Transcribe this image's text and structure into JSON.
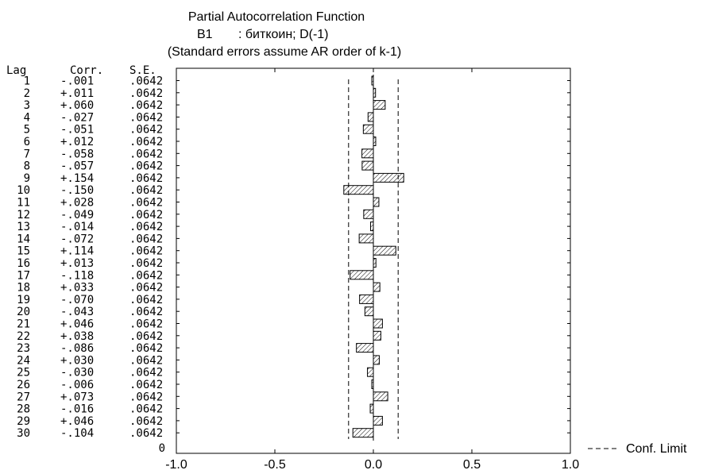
{
  "chart_data": {
    "type": "bar",
    "orientation": "horizontal",
    "title": "Partial Autocorrelation Function",
    "subtitle_series": "B1",
    "subtitle_desc": ": биткоин; D(-1)",
    "subtitle2": "(Standard errors assume AR order of k-1)",
    "table_headers": {
      "lag": "Lag",
      "corr": "Corr.",
      "se": "S.E."
    },
    "lags": [
      1,
      2,
      3,
      4,
      5,
      6,
      7,
      8,
      9,
      10,
      11,
      12,
      13,
      14,
      15,
      16,
      17,
      18,
      19,
      20,
      21,
      22,
      23,
      24,
      25,
      26,
      27,
      28,
      29,
      30
    ],
    "corr_labels": [
      "-.001",
      "+.011",
      "+.060",
      "-.027",
      "-.051",
      "+.012",
      "-.058",
      "-.057",
      "+.154",
      "-.150",
      "+.028",
      "-.049",
      "-.014",
      "-.072",
      "+.114",
      "+.013",
      "-.118",
      "+.033",
      "-.070",
      "-.043",
      "+.046",
      "+.038",
      "-.086",
      "+.030",
      "-.030",
      "-.006",
      "+.073",
      "-.016",
      "+.046",
      "-.104"
    ],
    "values": [
      -0.001,
      0.011,
      0.06,
      -0.027,
      -0.051,
      0.012,
      -0.058,
      -0.057,
      0.154,
      -0.15,
      0.028,
      -0.049,
      -0.014,
      -0.072,
      0.114,
      0.013,
      -0.118,
      0.033,
      -0.07,
      -0.043,
      0.046,
      0.038,
      -0.086,
      0.03,
      -0.03,
      -0.006,
      0.073,
      -0.016,
      0.046,
      -0.104
    ],
    "se_labels": [
      ".0642",
      ".0642",
      ".0642",
      ".0642",
      ".0642",
      ".0642",
      ".0642",
      ".0642",
      ".0642",
      ".0642",
      ".0642",
      ".0642",
      ".0642",
      ".0642",
      ".0642",
      ".0642",
      ".0642",
      ".0642",
      ".0642",
      ".0642",
      ".0642",
      ".0642",
      ".0642",
      ".0642",
      ".0642",
      ".0642",
      ".0642",
      ".0642",
      ".0642",
      ".0642"
    ],
    "conf_limit": 0.1258,
    "xlim": [
      -1.0,
      1.0
    ],
    "x_ticks": [
      "-1.0",
      "-0.5",
      "0.0",
      "0.5",
      "1.0"
    ],
    "x_tick_values": [
      -1.0,
      -0.5,
      0.0,
      0.5,
      1.0
    ],
    "y_axis_zero_label": "0",
    "legend_label": "Conf. Limit",
    "legend_position": "bottom-right"
  }
}
